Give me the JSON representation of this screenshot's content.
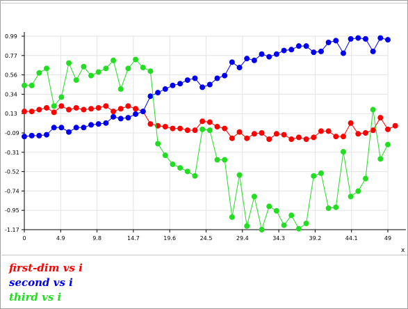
{
  "chart_data": {
    "type": "line",
    "title": "",
    "xlabel": "",
    "ylabel": "",
    "xlim": [
      0,
      49
    ],
    "ylim": [
      -1.17,
      0.99
    ],
    "x_tick_labels": [
      "0",
      "4.9",
      "9.8",
      "14.7",
      "19.6",
      "24.5",
      "29.4",
      "34.3",
      "39.2",
      "44.1",
      "49"
    ],
    "y_tick_labels": [
      "0.99",
      "0.77",
      "0.56",
      "0.34",
      "0.13",
      "-0.09",
      "-0.31",
      "-0.52",
      "-0.74",
      "-0.95",
      "-1.17"
    ],
    "x_axis_marker": "x",
    "grid": true,
    "legend_position": "bottom-left",
    "series": [
      {
        "name": "first-dim vs i",
        "color": "#ff0000",
        "values": [
          0.15,
          0.15,
          0.17,
          0.19,
          0.14,
          0.21,
          0.17,
          0.19,
          0.17,
          0.18,
          0.19,
          0.21,
          0.15,
          0.18,
          0.21,
          0.18,
          0.15,
          0.01,
          -0.01,
          -0.02,
          -0.04,
          -0.04,
          -0.06,
          -0.06,
          0.04,
          0.03,
          -0.02,
          -0.04,
          -0.15,
          -0.08,
          -0.15,
          -0.1,
          -0.09,
          -0.16,
          -0.1,
          -0.11,
          -0.16,
          -0.14,
          -0.16,
          -0.14,
          -0.07,
          -0.07,
          -0.13,
          -0.13,
          0.02,
          -0.1,
          -0.09,
          -0.06,
          0.08,
          -0.05,
          -0.01
        ]
      },
      {
        "name": "second vs i",
        "color": "#0000ee",
        "values": [
          -0.13,
          -0.12,
          -0.12,
          -0.11,
          -0.03,
          -0.03,
          -0.08,
          -0.03,
          -0.03,
          0.0,
          0.01,
          0.02,
          0.09,
          0.07,
          0.08,
          0.12,
          0.15,
          0.32,
          0.36,
          0.4,
          0.44,
          0.46,
          0.5,
          0.52,
          0.42,
          0.45,
          0.52,
          0.55,
          0.7,
          0.64,
          0.74,
          0.72,
          0.79,
          0.76,
          0.79,
          0.83,
          0.84,
          0.88,
          0.88,
          0.81,
          0.82,
          0.92,
          0.94,
          0.8,
          0.96,
          0.97,
          0.96,
          0.82,
          0.97,
          0.95
        ]
      },
      {
        "name": "third vs i",
        "color": "#22dd22",
        "values": [
          0.44,
          0.44,
          0.58,
          0.63,
          0.21,
          0.31,
          0.69,
          0.5,
          0.65,
          0.55,
          0.59,
          0.63,
          0.72,
          0.4,
          0.63,
          0.73,
          0.64,
          0.6,
          -0.21,
          -0.34,
          -0.44,
          -0.48,
          -0.52,
          -0.57,
          -0.05,
          -0.06,
          -0.39,
          -0.39,
          -1.03,
          -0.56,
          -1.13,
          -0.8,
          -1.17,
          -0.91,
          -0.96,
          -1.12,
          -1.01,
          -1.16,
          -1.1,
          -0.57,
          -0.54,
          -0.93,
          -0.92,
          -0.3,
          -0.8,
          -0.74,
          -0.6,
          0.17,
          -0.38,
          -0.22
        ]
      }
    ]
  }
}
